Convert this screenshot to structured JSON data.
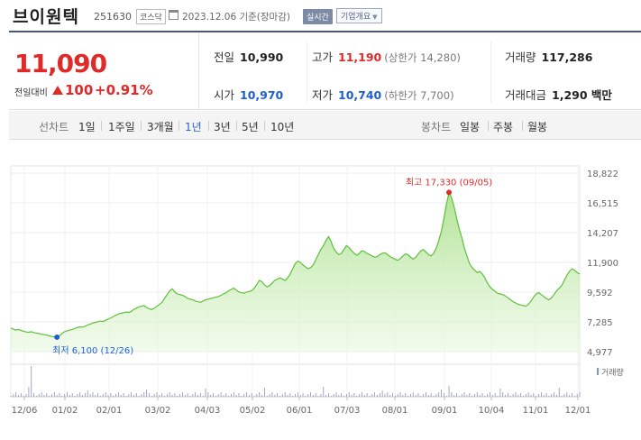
{
  "header": {
    "name": "브이원텍",
    "code": "251630",
    "market": "코스닥",
    "date": "2023.12.06 기준(장마감)",
    "realtime": "실시간",
    "company": "기업개요"
  },
  "summary": {
    "price": "11,090",
    "diff_label": "전일대비",
    "diff": "100",
    "rate": "+0.91%",
    "prev": {
      "label": "전일",
      "value": "10,990"
    },
    "high": {
      "label": "고가",
      "value": "11,190",
      "sub": "(상한가 14,280)"
    },
    "volume": {
      "label": "거래량",
      "value": "117,286"
    },
    "open": {
      "label": "시가",
      "value": "10,970"
    },
    "low": {
      "label": "저가",
      "value": "10,740",
      "sub": "(하한가 7,700)"
    },
    "amount": {
      "label": "거래대금",
      "value": "1,290 백만"
    }
  },
  "periods": {
    "line_label": "선차트",
    "line": [
      "1일",
      "1주일",
      "3개월",
      "1년",
      "3년",
      "5년",
      "10년"
    ],
    "selected": "1년",
    "candle_label": "봉차트",
    "candle": [
      "일봉",
      "주봉",
      "월봉"
    ]
  },
  "chart_data": {
    "type": "area",
    "y_ticks": [
      "18,822",
      "16,515",
      "14,207",
      "11,900",
      "9,592",
      "7,285",
      "4,977"
    ],
    "ylim": [
      4977,
      18822
    ],
    "x_ticks": [
      "12/06",
      "01/02",
      "02/01",
      "03/02",
      "04/03",
      "05/02",
      "06/01",
      "07/03",
      "08/01",
      "09/01",
      "10/04",
      "11/01",
      "12/01"
    ],
    "max_label": "최고 17,330 (09/05)",
    "min_label": "최저 6,100 (12/26)",
    "volume_label": "거래량",
    "series": [
      {
        "values": [
          6800,
          6720,
          6650,
          6700,
          6620,
          6560,
          6500,
          6480,
          6520,
          6460,
          6420,
          6380,
          6330,
          6300,
          6260,
          6200,
          6150,
          6120,
          6100,
          6220,
          6380,
          6520,
          6600,
          6650,
          6700,
          6780,
          6850,
          6900,
          6880,
          6950,
          7050,
          7120,
          7200,
          7250,
          7300,
          7350,
          7320,
          7400,
          7500,
          7600,
          7700,
          7800,
          7900,
          7950,
          8000,
          8050,
          8020,
          8100,
          8250,
          8350,
          8450,
          8500,
          8550,
          8400,
          8300,
          8250,
          8350,
          8500,
          8650,
          8800,
          9100,
          9400,
          9700,
          9850,
          9600,
          9450,
          9400,
          9350,
          9250,
          9100,
          9050,
          9000,
          8900,
          8850,
          8800,
          8900,
          9000,
          9050,
          9100,
          9150,
          9200,
          9250,
          9350,
          9450,
          9550,
          9700,
          9800,
          9900,
          9750,
          9600,
          9550,
          9500,
          9600,
          9650,
          9700,
          9900,
          10200,
          10500,
          10400,
          10150,
          10000,
          10100,
          10300,
          10500,
          10600,
          10700,
          10600,
          10500,
          10700,
          11000,
          11400,
          11800,
          12000,
          11900,
          11700,
          11550,
          11400,
          11500,
          11700,
          12100,
          12500,
          12900,
          13200,
          13600,
          13900,
          13500,
          13000,
          12700,
          12500,
          12600,
          12900,
          13200,
          13050,
          12800,
          12600,
          12450,
          12600,
          12800,
          12750,
          12600,
          12500,
          12400,
          12300,
          12350,
          12500,
          12600,
          12650,
          12500,
          12350,
          12250,
          12150,
          12050,
          12200,
          12400,
          12550,
          12500,
          12300,
          12150,
          12300,
          12550,
          12800,
          12900,
          12700,
          12500,
          12400,
          12600,
          13000,
          13600,
          14300,
          15300,
          16400,
          17330,
          16900,
          16200,
          15300,
          14500,
          13800,
          13000,
          12400,
          11800,
          11500,
          11300,
          11100,
          11200,
          11000,
          10700,
          10300,
          10000,
          9800,
          9650,
          9500,
          9450,
          9400,
          9300,
          9150,
          9000,
          8850,
          8750,
          8650,
          8600,
          8550,
          8500,
          8650,
          8900,
          9200,
          9450,
          9550,
          9400,
          9250,
          9100,
          9000,
          9150,
          9400,
          9700,
          9900,
          10100,
          10500,
          10900,
          11200,
          11400,
          11300,
          11100,
          11000
        ]
      }
    ]
  }
}
